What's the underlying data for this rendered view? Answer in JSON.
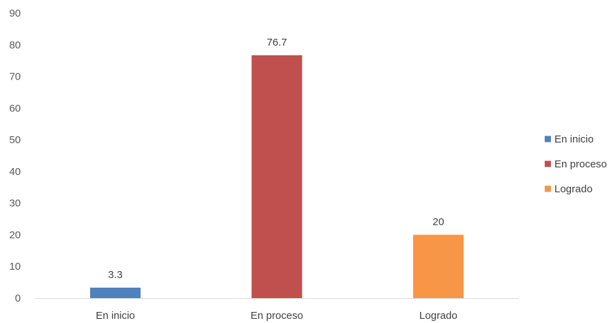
{
  "chart_data": {
    "type": "bar",
    "categories": [
      "En inicio",
      "En proceso",
      "Logrado"
    ],
    "values": [
      3.3,
      76.7,
      20
    ],
    "data_labels": [
      "3.3",
      "76.7",
      "20"
    ],
    "colors": [
      "#4f81bd",
      "#c0504d",
      "#f79646"
    ],
    "ylim": [
      0,
      90
    ],
    "yticks": [
      0,
      10,
      20,
      30,
      40,
      50,
      60,
      70,
      80,
      90
    ],
    "grid": false,
    "legend": {
      "placement": "right",
      "entries": [
        "En inicio",
        "En proceso",
        "Logrado"
      ]
    }
  }
}
